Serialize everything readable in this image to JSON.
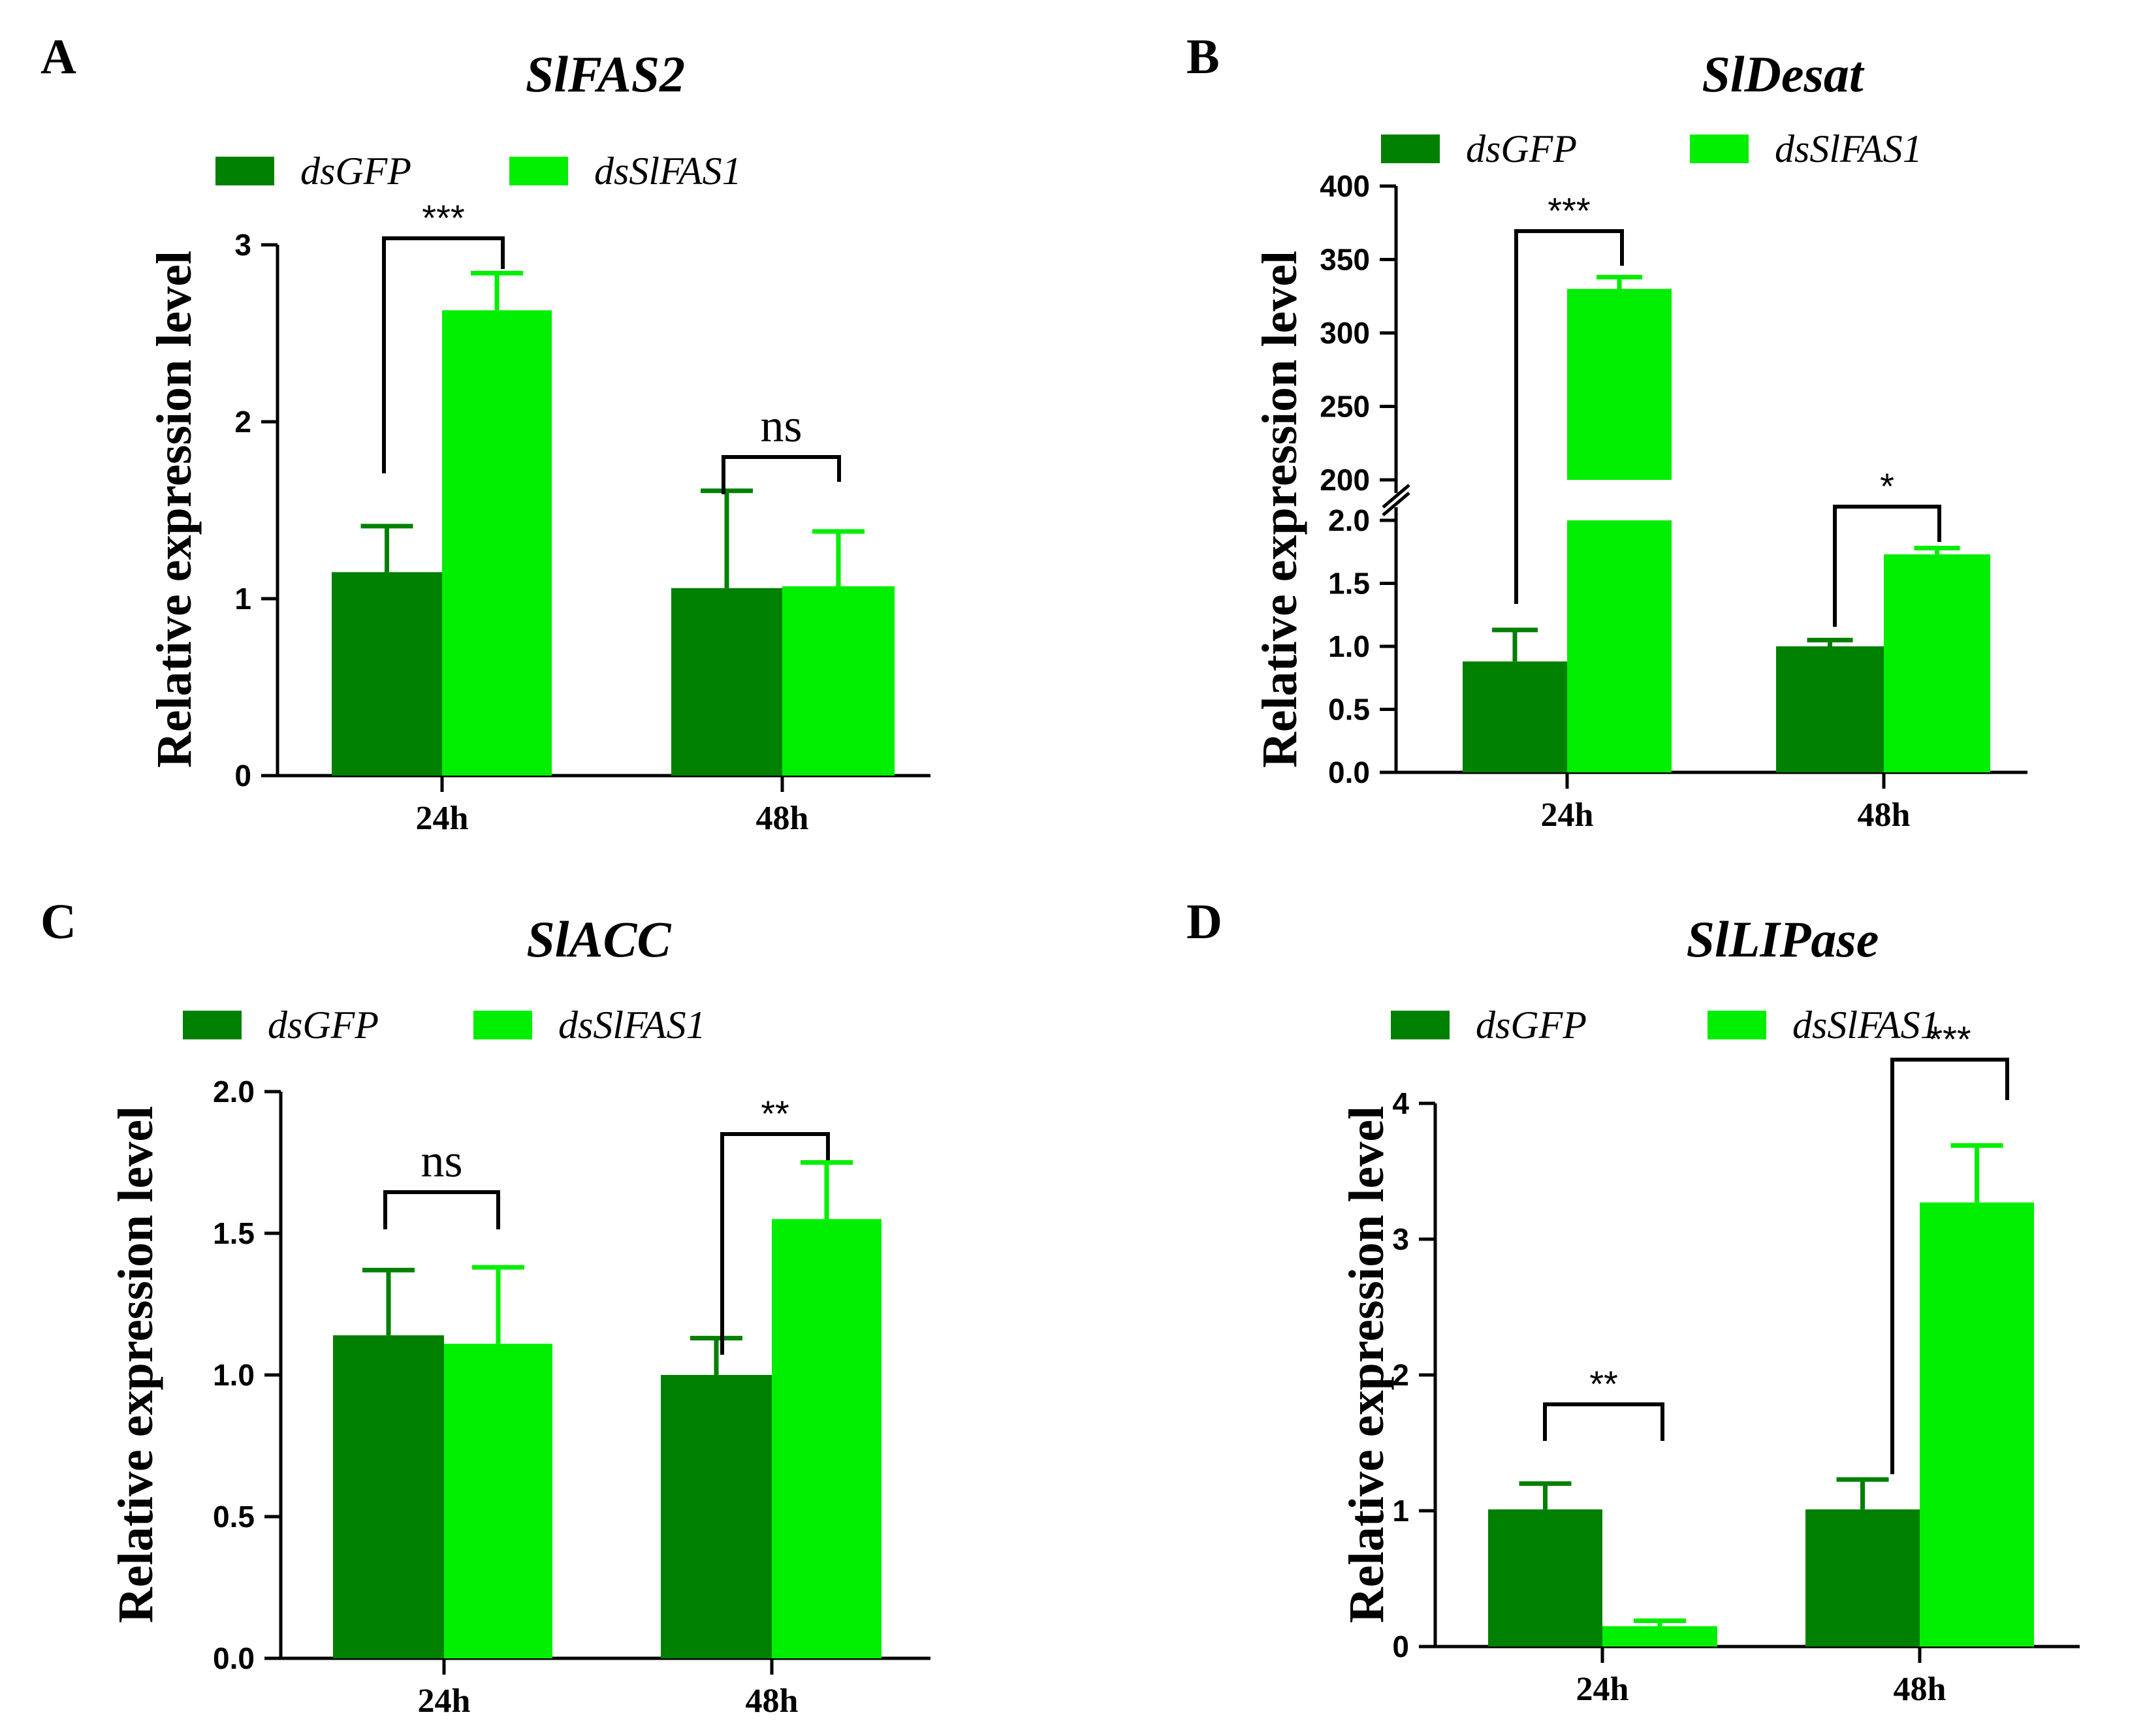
{
  "colors": {
    "dsGFP": "#008000",
    "dsSlFAS1": "#00ee00",
    "axis": "#000000"
  },
  "chart_data": [
    {
      "panel": "A",
      "title": "SlFAS2",
      "type": "bar",
      "categories": [
        "24h",
        "48h"
      ],
      "legend": [
        "dsGFP",
        "dsSlFAS1"
      ],
      "ylabel": "Relative expression level",
      "xlabel": "",
      "ylim": [
        0,
        3
      ],
      "yticks": [
        0,
        1,
        2,
        3
      ],
      "ytick_labels": [
        "0",
        "1",
        "2",
        "3"
      ],
      "series": [
        {
          "name": "dsGFP",
          "values": [
            1.15,
            1.06
          ],
          "errors": [
            0.26,
            0.55
          ]
        },
        {
          "name": "dsSlFAS1",
          "values": [
            2.63,
            1.07
          ],
          "errors": [
            0.21,
            0.31
          ]
        }
      ],
      "significance": [
        "***",
        "ns"
      ]
    },
    {
      "panel": "B",
      "title": "SlDesat",
      "type": "bar",
      "categories": [
        "24h",
        "48h"
      ],
      "legend": [
        "dsGFP",
        "dsSlFAS1"
      ],
      "ylabel": "Relative expression level",
      "xlabel": "",
      "axis_break": {
        "lower": [
          0,
          2.0
        ],
        "upper": [
          200,
          400
        ]
      },
      "yticks_lower": [
        0,
        0.5,
        1.0,
        1.5,
        2.0
      ],
      "ytick_labels_lower": [
        "0.0",
        "0.5",
        "1.0",
        "1.5",
        "2.0"
      ],
      "yticks_upper": [
        200,
        250,
        300,
        350,
        400
      ],
      "ytick_labels_upper": [
        "200",
        "250",
        "300",
        "350",
        "400"
      ],
      "series": [
        {
          "name": "dsGFP",
          "values": [
            0.88,
            1.0
          ],
          "errors": [
            0.25,
            0.05
          ]
        },
        {
          "name": "dsSlFAS1",
          "values": [
            330,
            1.73
          ],
          "errors": [
            8,
            0.05
          ]
        }
      ],
      "significance": [
        "***",
        "*"
      ]
    },
    {
      "panel": "C",
      "title": "SlACC",
      "type": "bar",
      "categories": [
        "24h",
        "48h"
      ],
      "legend": [
        "dsGFP",
        "dsSlFAS1"
      ],
      "ylabel": "Relative expression level",
      "xlabel": "",
      "ylim": [
        0,
        2.0
      ],
      "yticks": [
        0,
        0.5,
        1.0,
        1.5,
        2.0
      ],
      "ytick_labels": [
        "0.0",
        "0.5",
        "1.0",
        "1.5",
        "2.0"
      ],
      "series": [
        {
          "name": "dsGFP",
          "values": [
            1.14,
            1.0
          ],
          "errors": [
            0.23,
            0.13
          ]
        },
        {
          "name": "dsSlFAS1",
          "values": [
            1.11,
            1.55
          ],
          "errors": [
            0.27,
            0.2
          ]
        }
      ],
      "significance": [
        "ns",
        "**"
      ]
    },
    {
      "panel": "D",
      "title": "SlLIPase",
      "type": "bar",
      "categories": [
        "24h",
        "48h"
      ],
      "legend": [
        "dsGFP",
        "dsSlFAS1"
      ],
      "ylabel": "Relative expression level",
      "xlabel": "",
      "ylim": [
        0,
        4
      ],
      "yticks": [
        0,
        1,
        2,
        3,
        4
      ],
      "ytick_labels": [
        "0",
        "1",
        "2",
        "3",
        "4"
      ],
      "series": [
        {
          "name": "dsGFP",
          "values": [
            1.01,
            1.01
          ],
          "errors": [
            0.19,
            0.22
          ]
        },
        {
          "name": "dsSlFAS1",
          "values": [
            0.15,
            3.27
          ],
          "errors": [
            0.04,
            0.42
          ]
        }
      ],
      "significance": [
        "**",
        "***"
      ]
    }
  ]
}
